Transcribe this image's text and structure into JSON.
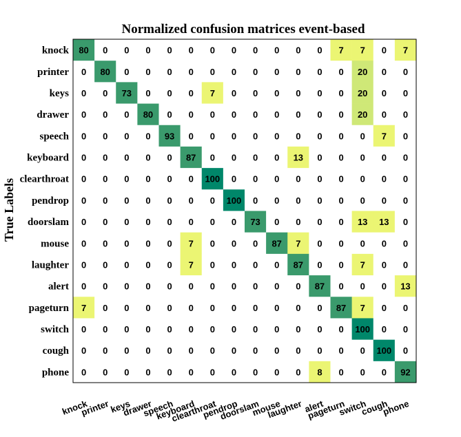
{
  "chart_data": {
    "type": "heatmap",
    "title": "Normalized confusion matrices event-based",
    "ylabel": "True Labels",
    "xlabel": "",
    "rows": [
      "knock",
      "printer",
      "keys",
      "drawer",
      "speech",
      "keyboard",
      "clearthroat",
      "pendrop",
      "doorslam",
      "mouse",
      "laughter",
      "alert",
      "pageturn",
      "switch",
      "cough",
      "phone"
    ],
    "columns": [
      "knock",
      "printer",
      "keys",
      "drawer",
      "speech",
      "keyboard",
      "clearthroat",
      "pendrop",
      "doorslam",
      "mouse",
      "laughter",
      "alert",
      "pageturn",
      "switch",
      "cough",
      "phone"
    ],
    "values": [
      [
        80,
        0,
        0,
        0,
        0,
        0,
        0,
        0,
        0,
        0,
        0,
        0,
        7,
        7,
        0,
        7
      ],
      [
        0,
        80,
        0,
        0,
        0,
        0,
        0,
        0,
        0,
        0,
        0,
        0,
        0,
        20,
        0,
        0
      ],
      [
        0,
        0,
        73,
        0,
        0,
        0,
        7,
        0,
        0,
        0,
        0,
        0,
        0,
        20,
        0,
        0
      ],
      [
        0,
        0,
        0,
        80,
        0,
        0,
        0,
        0,
        0,
        0,
        0,
        0,
        0,
        20,
        0,
        0
      ],
      [
        0,
        0,
        0,
        0,
        93,
        0,
        0,
        0,
        0,
        0,
        0,
        0,
        0,
        0,
        7,
        0
      ],
      [
        0,
        0,
        0,
        0,
        0,
        87,
        0,
        0,
        0,
        0,
        13,
        0,
        0,
        0,
        0,
        0
      ],
      [
        0,
        0,
        0,
        0,
        0,
        0,
        100,
        0,
        0,
        0,
        0,
        0,
        0,
        0,
        0,
        0
      ],
      [
        0,
        0,
        0,
        0,
        0,
        0,
        0,
        100,
        0,
        0,
        0,
        0,
        0,
        0,
        0,
        0
      ],
      [
        0,
        0,
        0,
        0,
        0,
        0,
        0,
        0,
        73,
        0,
        0,
        0,
        0,
        13,
        13,
        0
      ],
      [
        0,
        0,
        0,
        0,
        0,
        7,
        0,
        0,
        0,
        87,
        7,
        0,
        0,
        0,
        0,
        0
      ],
      [
        0,
        0,
        0,
        0,
        0,
        7,
        0,
        0,
        0,
        0,
        87,
        0,
        0,
        7,
        0,
        0
      ],
      [
        0,
        0,
        0,
        0,
        0,
        0,
        0,
        0,
        0,
        0,
        0,
        87,
        0,
        0,
        0,
        13
      ],
      [
        7,
        0,
        0,
        0,
        0,
        0,
        0,
        0,
        0,
        0,
        0,
        0,
        87,
        7,
        0,
        0
      ],
      [
        0,
        0,
        0,
        0,
        0,
        0,
        0,
        0,
        0,
        0,
        0,
        0,
        0,
        100,
        0,
        0
      ],
      [
        0,
        0,
        0,
        0,
        0,
        0,
        0,
        0,
        0,
        0,
        0,
        0,
        0,
        0,
        100,
        0
      ],
      [
        0,
        0,
        0,
        0,
        0,
        0,
        0,
        0,
        0,
        0,
        0,
        8,
        0,
        0,
        0,
        92
      ]
    ],
    "colors": {
      "zero": "#ffffff",
      "low": "#ebf573",
      "mid": "#cfe877",
      "high": "#3a9a6c",
      "max": "#00876a",
      "border": "#000000"
    }
  }
}
